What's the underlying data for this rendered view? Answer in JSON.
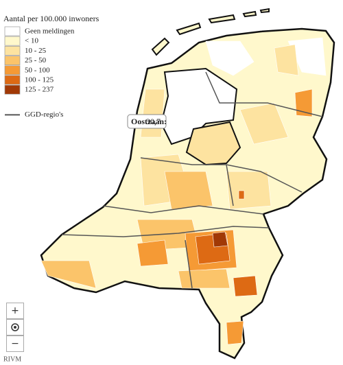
{
  "legend": {
    "title": "Aantal per 100.000 inwoners",
    "items": [
      {
        "label": "Geen meldingen",
        "color": "#ffffff"
      },
      {
        "label": "< 10",
        "color": "#fff8cc"
      },
      {
        "label": "10 - 25",
        "color": "#fde3a0"
      },
      {
        "label": "25 - 50",
        "color": "#fbc46a"
      },
      {
        "label": "50 - 100",
        "color": "#f59a35"
      },
      {
        "label": "100 - 125",
        "color": "#dd6a14"
      },
      {
        "label": "125 - 237",
        "color": "#a13906"
      }
    ],
    "boundary": {
      "label": "GGD-regio's",
      "color": "#555555"
    }
  },
  "tooltip": {
    "name": "Oostzaan:",
    "value": "30,7"
  },
  "zoom": {
    "in": "+",
    "out": "−"
  },
  "attribution": "RIVM"
}
